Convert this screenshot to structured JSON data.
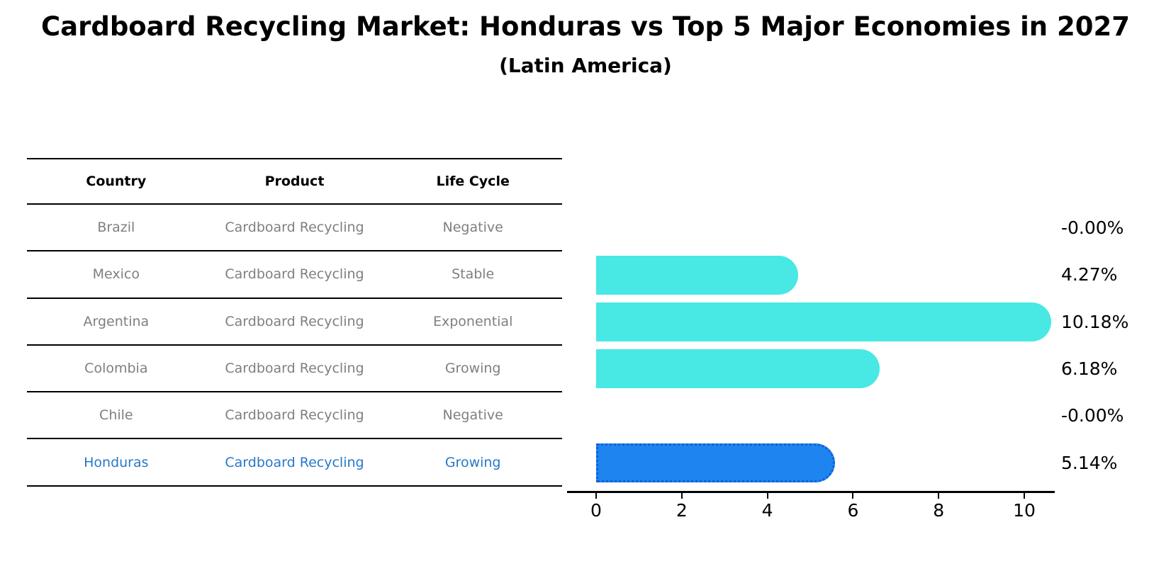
{
  "title": "Cardboard Recycling Market: Honduras vs Top 5 Major Economies in 2027",
  "subtitle": "(Latin America)",
  "table": {
    "headers": [
      "Country",
      "Product",
      "Life Cycle"
    ],
    "rows": [
      {
        "country": "Brazil",
        "product": "Cardboard Recycling",
        "life_cycle": "Negative",
        "highlighted": false
      },
      {
        "country": "Mexico",
        "product": "Cardboard Recycling",
        "life_cycle": "Stable",
        "highlighted": false
      },
      {
        "country": "Argentina",
        "product": "Cardboard Recycling",
        "life_cycle": "Exponential",
        "highlighted": false
      },
      {
        "country": "Colombia",
        "product": "Cardboard Recycling",
        "life_cycle": "Growing",
        "highlighted": false
      },
      {
        "country": "Chile",
        "product": "Cardboard Recycling",
        "life_cycle": "Negative",
        "highlighted": false
      },
      {
        "country": "Honduras",
        "product": "Cardboard Recycling",
        "life_cycle": "Growing",
        "highlighted": true
      }
    ]
  },
  "chart_data": {
    "type": "bar",
    "orientation": "horizontal",
    "categories": [
      "Brazil",
      "Mexico",
      "Argentina",
      "Colombia",
      "Chile",
      "Honduras"
    ],
    "values": [
      0,
      4.27,
      10.18,
      6.18,
      0,
      5.14
    ],
    "value_labels": [
      "-0.00%",
      "4.27%",
      "10.18%",
      "6.18%",
      "-0.00%",
      "5.14%"
    ],
    "x_ticks": [
      "0",
      "2",
      "4",
      "6",
      "8",
      "10"
    ],
    "x_tick_values": [
      0,
      2,
      4,
      6,
      8,
      10
    ],
    "xlim": [
      0,
      10.7
    ],
    "grid": false,
    "legend_position": "none",
    "bar_color": "#48e8e4",
    "highlight_bar_color": "#1e84f0",
    "highlight_border_color": "#0f5fd7",
    "highlight_index": 5
  },
  "colors": {
    "background": "#ffffff",
    "table_text": "#7f7f7f",
    "header_text": "#000000",
    "highlight_text": "#2878c8",
    "axis": "#000000"
  }
}
